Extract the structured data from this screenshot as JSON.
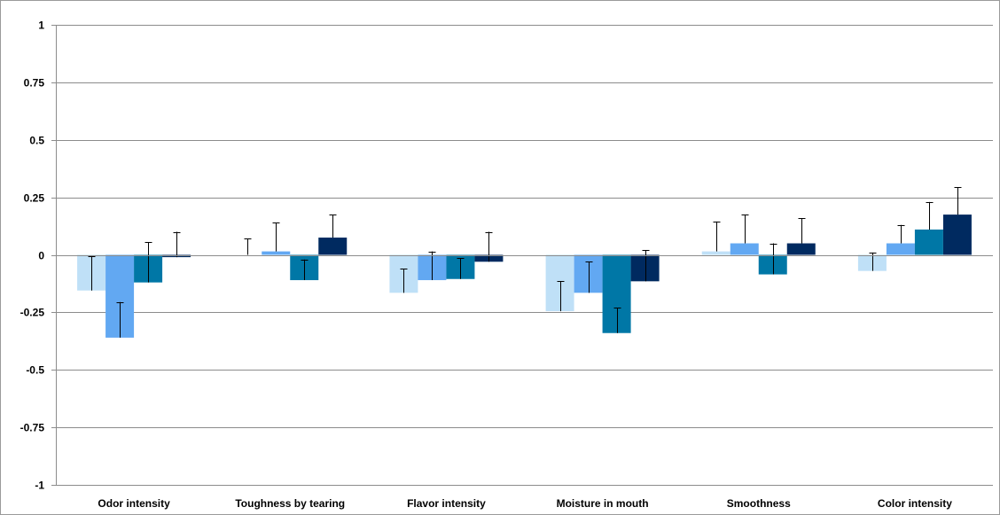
{
  "chart_data": {
    "type": "bar",
    "title": "",
    "xlabel": "",
    "ylabel": "",
    "ylim": [
      -1,
      1
    ],
    "yticks": [
      1,
      0.75,
      0.5,
      0.25,
      0,
      -0.25,
      -0.5,
      -0.75,
      -1
    ],
    "ytick_labels": [
      "1",
      "0.75",
      "0.5",
      "0.25",
      "0",
      "-0.25",
      "-0.5",
      "-0.75",
      "-1"
    ],
    "grid": true,
    "legend": "none",
    "categories": [
      "Odor intensity",
      "Toughness by tearing",
      "Flavor intensity",
      "Moisture in mouth",
      "Smoothness",
      "Color intensity"
    ],
    "series": [
      {
        "color": "#bfe0f7",
        "values": [
          -0.155,
          0.0,
          -0.165,
          -0.245,
          0.015,
          -0.07
        ],
        "errors": [
          0.15,
          0.07,
          0.105,
          0.13,
          0.13,
          0.08
        ]
      },
      {
        "color": "#62a8f2",
        "values": [
          -0.36,
          0.015,
          -0.11,
          -0.165,
          0.05,
          0.05
        ],
        "errors": [
          0.155,
          0.125,
          0.125,
          0.135,
          0.125,
          0.08
        ]
      },
      {
        "color": "#0077a6",
        "values": [
          -0.12,
          -0.11,
          -0.105,
          -0.34,
          -0.085,
          0.11
        ],
        "errors": [
          0.175,
          0.09,
          0.09,
          0.11,
          0.135,
          0.12
        ]
      },
      {
        "color": "#002a60",
        "values": [
          -0.01,
          0.075,
          -0.03,
          -0.115,
          0.05,
          0.175
        ],
        "errors": [
          0.11,
          0.1,
          0.13,
          0.135,
          0.11,
          0.12
        ]
      }
    ]
  }
}
